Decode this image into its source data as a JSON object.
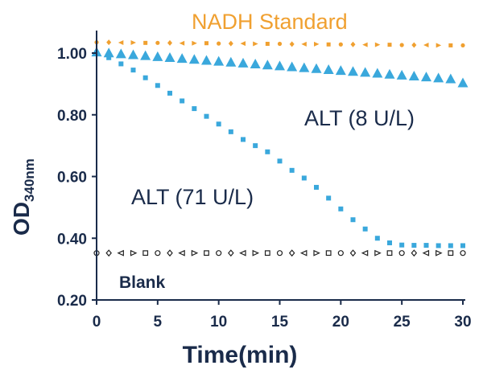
{
  "chart_data": {
    "type": "scatter",
    "xlabel": "Time(min)",
    "ylabel_main": "OD",
    "ylabel_sub": "340nm",
    "xlim": [
      0,
      30
    ],
    "ylim": [
      0.2,
      1.08
    ],
    "xticks": [
      0,
      5,
      10,
      15,
      20,
      25,
      30
    ],
    "yticks": [
      0.2,
      0.4,
      0.6,
      0.8,
      1.0
    ],
    "ytick_labels": [
      "0.20",
      "0.40",
      "0.60",
      "0.80",
      "1.00"
    ],
    "grid": false,
    "series": [
      {
        "name": "NADH Standard",
        "color": "#f0a030",
        "marker": "small-mixed",
        "x": [
          0,
          1,
          2,
          3,
          4,
          5,
          6,
          7,
          8,
          9,
          10,
          11,
          12,
          13,
          14,
          15,
          16,
          17,
          18,
          19,
          20,
          21,
          22,
          23,
          24,
          25,
          26,
          27,
          28,
          29,
          30
        ],
        "y": [
          1.035,
          1.035,
          1.034,
          1.034,
          1.033,
          1.033,
          1.033,
          1.032,
          1.032,
          1.032,
          1.031,
          1.031,
          1.031,
          1.03,
          1.03,
          1.03,
          1.029,
          1.029,
          1.029,
          1.028,
          1.028,
          1.028,
          1.027,
          1.027,
          1.027,
          1.026,
          1.026,
          1.026,
          1.025,
          1.025,
          1.025
        ]
      },
      {
        "name": "ALT (8 U/L)",
        "color": "#3aa8dc",
        "marker": "triangle",
        "x": [
          0,
          1,
          2,
          3,
          4,
          5,
          6,
          7,
          8,
          9,
          10,
          11,
          12,
          13,
          14,
          15,
          16,
          17,
          18,
          19,
          20,
          21,
          22,
          23,
          24,
          25,
          26,
          27,
          28,
          29,
          30
        ],
        "y": [
          1.005,
          1.002,
          0.999,
          0.996,
          0.993,
          0.99,
          0.987,
          0.984,
          0.981,
          0.978,
          0.975,
          0.972,
          0.969,
          0.966,
          0.963,
          0.96,
          0.957,
          0.954,
          0.951,
          0.948,
          0.945,
          0.942,
          0.939,
          0.936,
          0.933,
          0.93,
          0.927,
          0.924,
          0.921,
          0.918,
          0.905
        ]
      },
      {
        "name": "ALT (71 U/L)",
        "color": "#3aa8dc",
        "marker": "square",
        "x": [
          0,
          1,
          2,
          3,
          4,
          5,
          6,
          7,
          8,
          9,
          10,
          11,
          12,
          13,
          14,
          15,
          16,
          17,
          18,
          19,
          20,
          21,
          22,
          23,
          24,
          25,
          26,
          27,
          28,
          29,
          30
        ],
        "y": [
          1.0,
          0.985,
          0.965,
          0.945,
          0.92,
          0.895,
          0.87,
          0.845,
          0.82,
          0.795,
          0.77,
          0.745,
          0.72,
          0.7,
          0.68,
          0.65,
          0.62,
          0.595,
          0.565,
          0.53,
          0.495,
          0.46,
          0.43,
          0.4,
          0.385,
          0.378,
          0.377,
          0.377,
          0.376,
          0.376,
          0.376
        ]
      },
      {
        "name": "Blank",
        "color": "#222222",
        "marker": "open-mixed",
        "x": [
          0,
          1,
          2,
          3,
          4,
          5,
          6,
          7,
          8,
          9,
          10,
          11,
          12,
          13,
          14,
          15,
          16,
          17,
          18,
          19,
          20,
          21,
          22,
          23,
          24,
          25,
          26,
          27,
          28,
          29,
          30
        ],
        "y": [
          0.352,
          0.352,
          0.352,
          0.352,
          0.352,
          0.352,
          0.352,
          0.352,
          0.352,
          0.352,
          0.352,
          0.352,
          0.352,
          0.352,
          0.352,
          0.352,
          0.352,
          0.352,
          0.352,
          0.352,
          0.352,
          0.352,
          0.352,
          0.352,
          0.352,
          0.352,
          0.352,
          0.352,
          0.352,
          0.352,
          0.352
        ]
      }
    ],
    "labels": {
      "nadh": "NADH Standard",
      "alt8": "ALT (8 U/L)",
      "alt71": "ALT (71 U/L)",
      "blank": "Blank"
    },
    "label_colors": {
      "nadh": "#f0a030",
      "alt8": "#1a2b4a",
      "alt71": "#1a2b4a",
      "blank": "#1a2b4a"
    }
  }
}
